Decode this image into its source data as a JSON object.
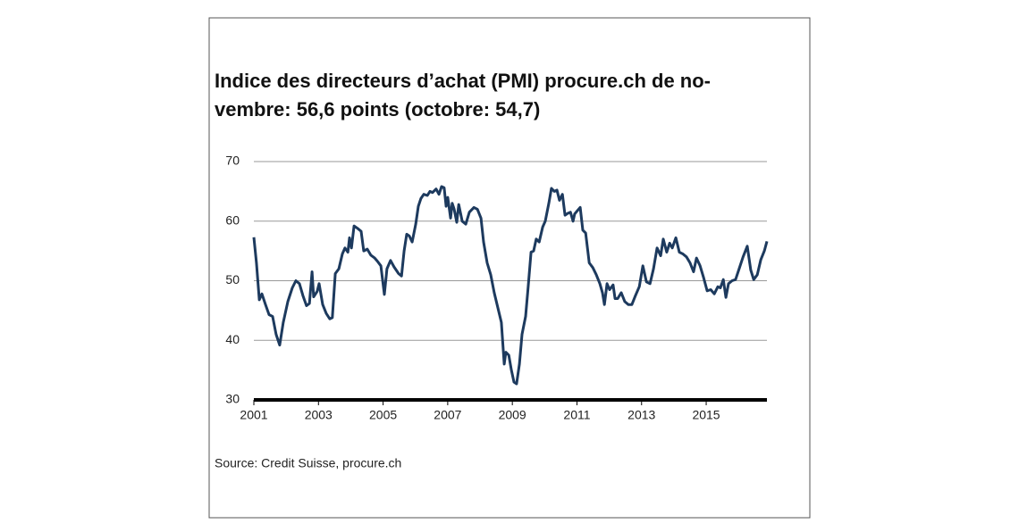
{
  "chart_data": {
    "type": "line",
    "title": [
      "Indice des directeurs d’achat (PMI) procure.ch de no-",
      "vembre: 56,6 points (octobre: 54,7)"
    ],
    "source": "Source: Credit Suisse, procure.ch",
    "x": [
      2001.0,
      2001.08,
      2001.17,
      2001.25,
      2001.36,
      2001.47,
      2001.58,
      2001.69,
      2001.8,
      2001.91,
      2002.05,
      2002.19,
      2002.3,
      2002.41,
      2002.52,
      2002.63,
      2002.72,
      2002.8,
      2002.85,
      2002.96,
      2003.02,
      2003.13,
      2003.24,
      2003.35,
      2003.43,
      2003.52,
      2003.63,
      2003.74,
      2003.82,
      2003.91,
      2003.96,
      2004.02,
      2004.1,
      2004.21,
      2004.32,
      2004.4,
      2004.51,
      2004.62,
      2004.74,
      2004.82,
      2004.93,
      2005.04,
      2005.12,
      2005.23,
      2005.34,
      2005.48,
      2005.57,
      2005.65,
      2005.73,
      2005.81,
      2005.9,
      2006.01,
      2006.09,
      2006.17,
      2006.26,
      2006.37,
      2006.45,
      2006.53,
      2006.64,
      2006.73,
      2006.81,
      2006.89,
      2006.95,
      2007.0,
      2007.09,
      2007.14,
      2007.2,
      2007.28,
      2007.34,
      2007.45,
      2007.56,
      2007.67,
      2007.81,
      2007.92,
      2008.03,
      2008.11,
      2008.22,
      2008.33,
      2008.44,
      2008.55,
      2008.66,
      2008.75,
      2008.8,
      2008.89,
      2008.97,
      2009.05,
      2009.13,
      2009.22,
      2009.3,
      2009.41,
      2009.49,
      2009.58,
      2009.66,
      2009.74,
      2009.83,
      2009.94,
      2010.02,
      2010.13,
      2010.21,
      2010.3,
      2010.38,
      2010.46,
      2010.55,
      2010.63,
      2010.71,
      2010.8,
      2010.88,
      2010.93,
      2011.02,
      2011.1,
      2011.18,
      2011.27,
      2011.38,
      2011.49,
      2011.6,
      2011.71,
      2011.79,
      2011.85,
      2011.93,
      2012.01,
      2012.12,
      2012.18,
      2012.26,
      2012.37,
      2012.48,
      2012.59,
      2012.7,
      2012.81,
      2012.93,
      2013.04,
      2013.15,
      2013.26,
      2013.37,
      2013.48,
      2013.59,
      2013.67,
      2013.78,
      2013.87,
      2013.95,
      2014.06,
      2014.17,
      2014.28,
      2014.39,
      2014.5,
      2014.61,
      2014.7,
      2014.81,
      2014.92,
      2015.03,
      2015.14,
      2015.25,
      2015.36,
      2015.44,
      2015.53,
      2015.61,
      2015.69,
      2015.8,
      2015.91,
      2016.02,
      2016.14,
      2016.27,
      2016.38,
      2016.47,
      2016.58,
      2016.69,
      2016.8,
      2016.88
    ],
    "series": [
      {
        "name": "PMI",
        "color": "#1d3a5e",
        "values": [
          57.3,
          53,
          46.8,
          47.8,
          46,
          44.3,
          44,
          41,
          39.2,
          43,
          46.5,
          48.8,
          50,
          49.5,
          47.5,
          45.8,
          46.2,
          51.5,
          47.3,
          48.2,
          49.5,
          46,
          44.5,
          43.6,
          43.8,
          51.2,
          52,
          54.5,
          55.5,
          54.8,
          57.2,
          55.5,
          59.2,
          58.8,
          58.3,
          55,
          55.3,
          54.3,
          53.8,
          53.3,
          52.5,
          47.7,
          52,
          53.4,
          52.3,
          51.2,
          50.8,
          55,
          57.8,
          57.5,
          56.5,
          59.5,
          62.5,
          63.8,
          64.5,
          64.3,
          65,
          64.8,
          65.4,
          64.5,
          65.8,
          65.6,
          62.5,
          64,
          60.5,
          63,
          62,
          59.8,
          62.8,
          60,
          59.5,
          61.5,
          62.3,
          62,
          60.5,
          56.5,
          53,
          51,
          48,
          45.5,
          43,
          36,
          38,
          37.5,
          35,
          33,
          32.7,
          36,
          41,
          44,
          49,
          54.8,
          55,
          57,
          56.5,
          59,
          60,
          63,
          65.5,
          65,
          65.2,
          63.5,
          64.5,
          61,
          61.3,
          61.5,
          60,
          61.2,
          61.8,
          62.3,
          58.5,
          58,
          53,
          52.2,
          51,
          49.5,
          48,
          46,
          49.5,
          48.5,
          49.3,
          47,
          47,
          48,
          46.5,
          46,
          46,
          47.5,
          49,
          52.5,
          49.8,
          49.5,
          52,
          55.5,
          54.2,
          57,
          54.8,
          56.3,
          55.5,
          57.2,
          54.8,
          54.5,
          54,
          53,
          51.5,
          53.8,
          52.5,
          50.5,
          48.3,
          48.5,
          47.8,
          49,
          48.8,
          50.2,
          47.2,
          49.5,
          50,
          50.2,
          52,
          54,
          55.8,
          51.8,
          50.2,
          51,
          53.5,
          55,
          56.6
        ]
      }
    ],
    "xlim": [
      2001,
      2016.88
    ],
    "xticks": [
      2001,
      2003,
      2005,
      2007,
      2009,
      2011,
      2013,
      2015
    ],
    "ylim": [
      30,
      70
    ],
    "yticks": [
      30,
      40,
      50,
      60,
      70
    ],
    "grid": true
  }
}
